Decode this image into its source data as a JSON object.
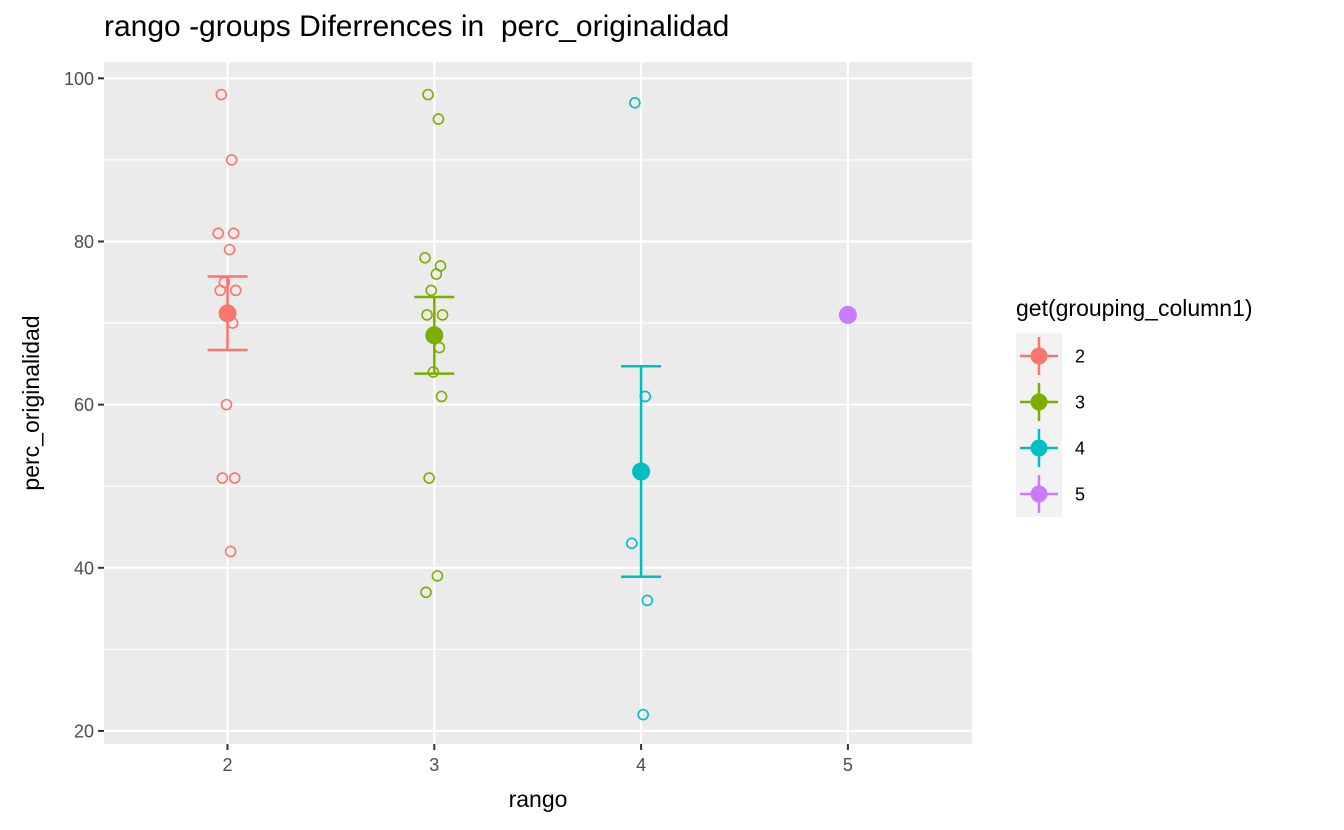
{
  "chart_data": {
    "type": "scatter",
    "title": "rango -groups Diferrences in  perc_originalidad",
    "xlabel": "rango",
    "ylabel": "perc_originalidad",
    "x_categories": [
      "2",
      "3",
      "4",
      "5"
    ],
    "y_ticks": [
      20,
      40,
      60,
      80,
      100
    ],
    "ylim": [
      18.4,
      102
    ],
    "grid": true,
    "legend": {
      "title": "get(grouping_column1)",
      "placement": "right",
      "entries": [
        "2",
        "3",
        "4",
        "5"
      ]
    },
    "colors": {
      "2": "#F8766D",
      "3": "#7CAE00",
      "4": "#00BFC4",
      "5": "#C77CFF",
      "panel": "#EBEBEB",
      "grid": "#FFFFFF"
    },
    "series": [
      {
        "name": "2",
        "x": 2,
        "points": [
          98,
          90,
          81,
          81,
          79,
          75,
          74,
          74,
          70,
          60,
          51,
          51,
          42
        ],
        "mean": 71.2,
        "error_low": 66.7,
        "error_high": 75.7
      },
      {
        "name": "3",
        "x": 3,
        "points": [
          98,
          95,
          78,
          77,
          76,
          74,
          71,
          71,
          67,
          64,
          61,
          51,
          39,
          37
        ],
        "mean": 68.5,
        "error_low": 63.8,
        "error_high": 73.2
      },
      {
        "name": "4",
        "x": 4,
        "points": [
          97,
          61,
          43,
          36,
          22
        ],
        "mean": 51.8,
        "error_low": 38.9,
        "error_high": 64.7
      },
      {
        "name": "5",
        "x": 5,
        "points": [
          71
        ],
        "mean": 71,
        "error_low": null,
        "error_high": null
      }
    ]
  }
}
